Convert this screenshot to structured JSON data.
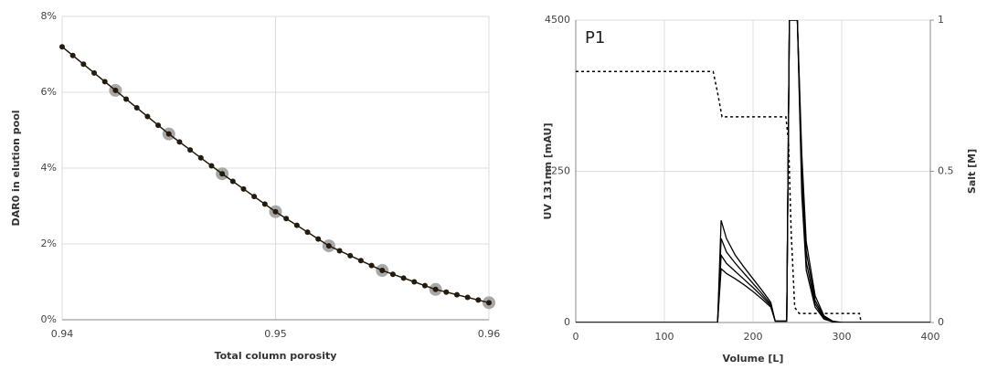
{
  "chart_data": [
    {
      "type": "scatter",
      "xlabel": "Total column porosity",
      "ylabel": "DAR0 in elution pool",
      "xlim": [
        0.94,
        0.96
      ],
      "xticks": [
        0.94,
        0.95,
        0.96
      ],
      "ylim": [
        0,
        8
      ],
      "yticks": [
        {
          "value": 0,
          "label": "0%"
        },
        {
          "value": 2,
          "label": "2%"
        },
        {
          "value": 4,
          "label": "4%"
        },
        {
          "value": 6,
          "label": "6%"
        },
        {
          "value": 8,
          "label": "8%"
        }
      ],
      "grid": true,
      "series": [
        {
          "color": "#a8a8a8",
          "marker_size": 7,
          "x": [
            0.9425,
            0.945,
            0.9475,
            0.95,
            0.9525,
            0.955,
            0.9575,
            0.96
          ],
          "values": [
            6.05,
            4.9,
            3.85,
            2.85,
            1.95,
            1.3,
            0.8,
            0.45
          ]
        },
        {
          "color": "#241a0e",
          "marker_size": 3,
          "line": true,
          "x": [
            0.94,
            0.9405,
            0.941,
            0.9415,
            0.942,
            0.9425,
            0.943,
            0.9435,
            0.944,
            0.9445,
            0.945,
            0.9455,
            0.946,
            0.9465,
            0.947,
            0.9475,
            0.948,
            0.9485,
            0.949,
            0.9495,
            0.95,
            0.9505,
            0.951,
            0.9515,
            0.952,
            0.9525,
            0.953,
            0.9535,
            0.954,
            0.9545,
            0.955,
            0.9555,
            0.956,
            0.9565,
            0.957,
            0.9575,
            0.958,
            0.9585,
            0.959,
            0.9595,
            0.96
          ],
          "values": [
            7.2,
            6.97,
            6.74,
            6.51,
            6.28,
            6.05,
            5.82,
            5.59,
            5.36,
            5.13,
            4.9,
            4.69,
            4.48,
            4.27,
            4.06,
            3.85,
            3.65,
            3.45,
            3.25,
            3.05,
            2.85,
            2.67,
            2.49,
            2.31,
            2.13,
            1.95,
            1.82,
            1.69,
            1.56,
            1.43,
            1.3,
            1.2,
            1.1,
            1.0,
            0.9,
            0.8,
            0.73,
            0.66,
            0.59,
            0.52,
            0.45
          ]
        }
      ]
    },
    {
      "type": "line",
      "annotation": "P1",
      "xlabel": "Volume [L]",
      "ylabel": "UV 131nm [mAU]",
      "y2label": "Salt [M]",
      "xlim": [
        0,
        400
      ],
      "xticks": [
        0,
        100,
        200,
        300,
        400
      ],
      "ylim": [
        0,
        4500
      ],
      "yticks": [
        0,
        2250,
        4500
      ],
      "y2lim": [
        0,
        1
      ],
      "y2ticks": [
        0,
        0.5,
        1
      ],
      "grid": true,
      "series": [
        {
          "color": "#000000",
          "x": [
            0,
            160,
            164,
            170,
            180,
            190,
            200,
            210,
            220,
            225,
            238,
            241,
            244,
            247,
            250,
            255,
            260,
            270,
            280,
            290,
            300,
            400
          ],
          "values": [
            0,
            0,
            1520,
            1250,
            1000,
            820,
            650,
            480,
            300,
            20,
            20,
            4500,
            4500,
            4500,
            4500,
            2500,
            1200,
            400,
            100,
            20,
            0,
            0
          ]
        },
        {
          "color": "#000000",
          "x": [
            0,
            160,
            164,
            170,
            180,
            190,
            200,
            210,
            220,
            225,
            238,
            241,
            244,
            247,
            250,
            255,
            260,
            270,
            280,
            290,
            300,
            400
          ],
          "values": [
            0,
            0,
            1250,
            1050,
            880,
            730,
            580,
            430,
            270,
            20,
            20,
            4500,
            4500,
            4500,
            4500,
            2300,
            1050,
            330,
            80,
            15,
            0,
            0
          ]
        },
        {
          "color": "#000000",
          "x": [
            0,
            160,
            164,
            170,
            180,
            190,
            200,
            210,
            220,
            225,
            238,
            241,
            244,
            247,
            250,
            255,
            260,
            270,
            280,
            290,
            300,
            400
          ],
          "values": [
            0,
            0,
            1000,
            880,
            760,
            640,
            520,
            390,
            250,
            20,
            20,
            4500,
            4500,
            4500,
            4500,
            2100,
            900,
            280,
            60,
            10,
            0,
            0
          ]
        },
        {
          "color": "#000000",
          "x": [
            0,
            160,
            164,
            170,
            180,
            190,
            200,
            210,
            220,
            225,
            238,
            241,
            244,
            247,
            250,
            255,
            260,
            270,
            280,
            290,
            300,
            400
          ],
          "values": [
            0,
            0,
            800,
            730,
            650,
            560,
            460,
            350,
            230,
            20,
            20,
            4500,
            4500,
            4500,
            4500,
            1900,
            780,
            230,
            50,
            10,
            0,
            0
          ]
        },
        {
          "color": "#000000",
          "axis": "y2",
          "dash": true,
          "x": [
            0,
            155,
            160,
            165,
            237,
            240,
            243,
            247,
            252,
            320,
            322
          ],
          "values": [
            0.83,
            0.83,
            0.76,
            0.68,
            0.68,
            0.6,
            0.3,
            0.05,
            0.03,
            0.03,
            0
          ]
        }
      ]
    }
  ]
}
